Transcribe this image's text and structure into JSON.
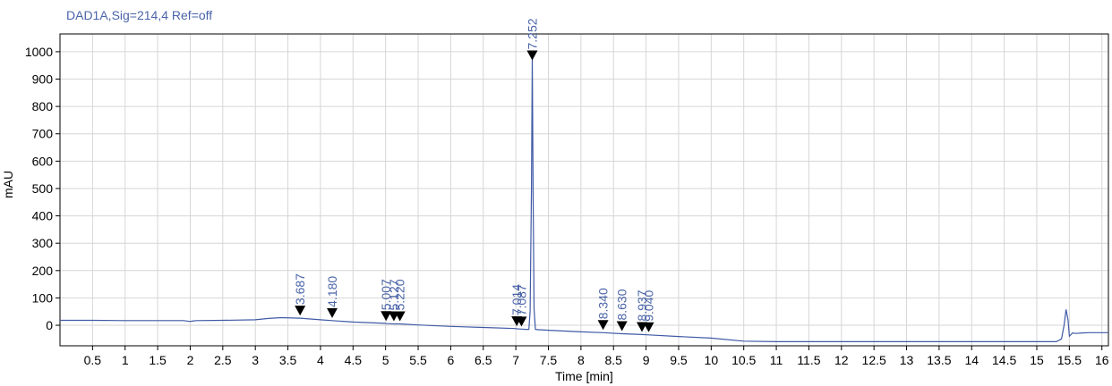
{
  "signal_title": "DAD1A,Sig=214,4  Ref=off",
  "chart_data": {
    "type": "line",
    "title": "DAD1A,Sig=214,4  Ref=off",
    "xlabel": "Time [min]",
    "ylabel": "mAU",
    "xlim": [
      0,
      16.1
    ],
    "ylim": [
      -75,
      1065
    ],
    "x_ticks": [
      0.5,
      1,
      1.5,
      2,
      2.5,
      3,
      3.5,
      4,
      4.5,
      5,
      5.5,
      6,
      6.5,
      7,
      7.5,
      8,
      8.5,
      9,
      9.5,
      10,
      10.5,
      11,
      11.5,
      12,
      12.5,
      13,
      13.5,
      14,
      14.5,
      15,
      15.5,
      16
    ],
    "x_tick_labels": [
      "0.5",
      "1",
      "1.5",
      "2",
      "2.5",
      "3",
      "3.5",
      "4",
      "4.5",
      "5",
      "5.5",
      "6",
      "6.5",
      "7",
      "7.5",
      "8",
      "8.5",
      "9",
      "9.5",
      "10",
      "10.5",
      "11",
      "11.5",
      "12",
      "12.5",
      "13",
      "13.5",
      "14",
      "14.5",
      "15",
      "15.5",
      "16"
    ],
    "y_ticks": [
      0,
      100,
      200,
      300,
      400,
      500,
      600,
      700,
      800,
      900,
      1000
    ],
    "y_tick_labels": [
      "0",
      "100",
      "200",
      "300",
      "400",
      "500",
      "600",
      "700",
      "800",
      "900",
      "1000"
    ],
    "grid": true,
    "series": [
      {
        "color": "#3f5aa6",
        "x": [
          0,
          0.5,
          1.0,
          1.5,
          1.9,
          2.0,
          2.05,
          2.1,
          2.5,
          3.0,
          3.2,
          3.4,
          3.687,
          4.0,
          4.18,
          4.5,
          5.0,
          5.007,
          5.127,
          5.22,
          5.5,
          6.0,
          6.5,
          7.0,
          7.014,
          7.087,
          7.15,
          7.2,
          7.22,
          7.24,
          7.252,
          7.265,
          7.28,
          7.3,
          7.32,
          7.5,
          8.0,
          8.34,
          8.63,
          8.937,
          9.04,
          9.5,
          10.0,
          10.5,
          11.0,
          12.0,
          13.0,
          14.0,
          14.5,
          15.0,
          15.3,
          15.38,
          15.42,
          15.45,
          15.48,
          15.5,
          15.55,
          15.6,
          15.7,
          15.8,
          16.0,
          16.1
        ],
        "y": [
          18,
          18,
          17,
          17,
          17,
          14,
          16,
          17,
          18,
          20,
          25,
          28,
          26,
          20,
          17,
          12,
          7,
          6,
          5,
          5,
          1,
          -4,
          -8,
          -12,
          -13,
          -14,
          -15,
          -15,
          50,
          500,
          985,
          500,
          60,
          -15,
          -16,
          -18,
          -24,
          -27,
          -31,
          -34,
          -35,
          -41,
          -47,
          -58,
          -60,
          -60,
          -60,
          -60,
          -60,
          -60,
          -60,
          -50,
          0,
          58,
          20,
          -40,
          -28,
          -30,
          -28,
          -27,
          -27,
          -27
        ]
      }
    ],
    "peak_labels": [
      "3.687",
      "4.180",
      "5.007",
      "5.127",
      "5.220",
      "7.014",
      "7.087",
      "7.252",
      "8.340",
      "8.630",
      "8.937",
      "9.040"
    ],
    "peak_times": [
      3.687,
      4.18,
      5.007,
      5.127,
      5.22,
      7.014,
      7.087,
      7.252,
      8.34,
      8.63,
      8.937,
      9.04
    ]
  }
}
